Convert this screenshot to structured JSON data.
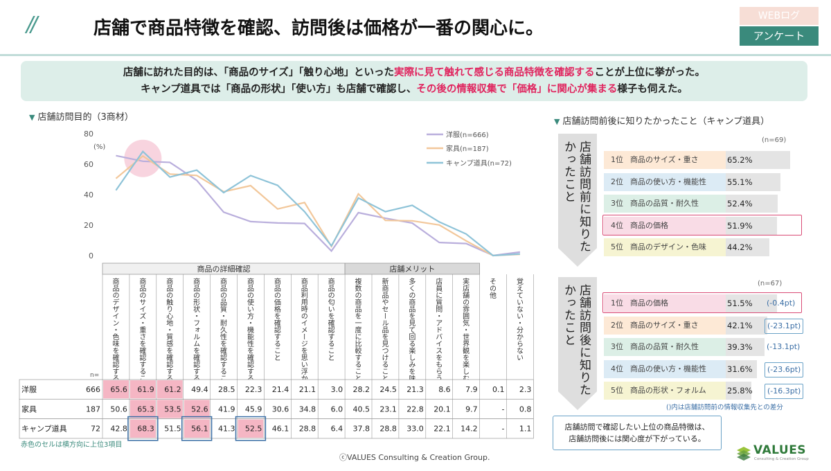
{
  "header": {
    "slashes": "//",
    "title": "店舗で商品特徴を確認、訪問後は価格が一番の関心に。",
    "tag_top": "WEBログ",
    "tag_bottom": "アンケート"
  },
  "summary": {
    "line1_a": "店舗に訪れた目的は、「商品のサイズ」「触り心地」といった",
    "line1_hl": "実際に見て触れて感じる商品特徴を確認する",
    "line1_b": "ことが上位に挙がった。",
    "line2_a": "キャンプ道具では「商品の形状」「使い方」も店舗で確認し、",
    "line2_hl": "その後の情報収集で「価格」に関心が集まる",
    "line2_b": "様子も伺えた。"
  },
  "left_section_title": "店舗訪問目的（3商材）",
  "right_section_title": "店舗訪問前後に知りたかったこと（キャンプ道具）",
  "chart_data": [
    {
      "type": "line",
      "ylim": [
        0,
        80
      ],
      "yticks": [
        "0",
        "20",
        "40",
        "60",
        "80"
      ],
      "ylabel": "(%)",
      "groups": [
        "商品の詳細確認",
        "店舗メリット"
      ],
      "categories": [
        "商品のデザイン・色味を確認すること",
        "商品のサイズ・重さを確認すること",
        "商品の触り心地・質感を確認すること",
        "商品の形状・フォルムを確認すること",
        "商品の品質・耐久性を確認すること",
        "商品の使い方・機能性を確認すること",
        "商品の価格を確認すること",
        "商品利用時のイメージを思い浮かべること",
        "商品の匂いを確認すること",
        "複数の商品を一度に比較すること",
        "新商品やセール品を見つけること",
        "多くの商品を見て回る楽しみを味わうこと",
        "店員に質問・アドバイスをもらうこと",
        "実店舗の雰囲気・世界観を楽しむこと",
        "その他",
        "覚えていない・分からない"
      ],
      "n_label": "n=",
      "series": [
        {
          "name": "洋服(n=666)",
          "table_name": "洋服",
          "n": "666",
          "color": "#b9aedc",
          "values": [
            65.6,
            61.9,
            61.2,
            49.4,
            28.5,
            22.3,
            21.4,
            21.1,
            3.0,
            28.2,
            24.5,
            21.3,
            8.6,
            7.9,
            0.1,
            2.3
          ],
          "table": [
            "65.6",
            "61.9",
            "61.2",
            "49.4",
            "28.5",
            "22.3",
            "21.4",
            "21.1",
            "3.0",
            "28.2",
            "24.5",
            "21.3",
            "8.6",
            "7.9",
            "0.1",
            "2.3"
          ]
        },
        {
          "name": "家具(n=187)",
          "table_name": "家具",
          "n": "187",
          "color": "#f2c79a",
          "values": [
            50.6,
            65.3,
            53.5,
            52.6,
            41.9,
            45.9,
            30.6,
            34.8,
            6.0,
            40.5,
            23.1,
            22.8,
            20.1,
            9.7,
            0,
            0.8
          ],
          "table": [
            "50.6",
            "65.3",
            "53.5",
            "52.6",
            "41.9",
            "45.9",
            "30.6",
            "34.8",
            "6.0",
            "40.5",
            "23.1",
            "22.8",
            "20.1",
            "9.7",
            "-",
            "0.8"
          ]
        },
        {
          "name": "キャンプ道具(n=72)",
          "table_name": "キャンプ道具",
          "n": "72",
          "color": "#8ec3d8",
          "values": [
            42.8,
            68.3,
            51.5,
            56.1,
            41.3,
            52.5,
            46.1,
            28.8,
            6.4,
            37.8,
            28.8,
            33.0,
            22.1,
            14.2,
            0,
            1.1
          ],
          "table": [
            "42.8",
            "68.3",
            "51.5",
            "56.1",
            "41.3",
            "52.5",
            "46.1",
            "28.8",
            "6.4",
            "37.8",
            "28.8",
            "33.0",
            "22.1",
            "14.2",
            "-",
            "1.1"
          ]
        }
      ],
      "highlights": [
        [
          0,
          0
        ],
        [
          0,
          1
        ],
        [
          0,
          2
        ],
        [
          1,
          1
        ],
        [
          1,
          2
        ],
        [
          1,
          3
        ],
        [
          2,
          1
        ],
        [
          2,
          3
        ],
        [
          2,
          5
        ]
      ],
      "boxed": [
        [
          2,
          1
        ],
        [
          2,
          3
        ],
        [
          2,
          5
        ]
      ],
      "footnote": "赤色のセルは横方向に上位3項目"
    },
    {
      "type": "bar",
      "title": "店舗訪問前に知りたかったこと",
      "n_label": "(n=69)",
      "ranks": [
        "1位",
        "2位",
        "3位",
        "4位",
        "5位"
      ],
      "categories": [
        "商品のサイズ・重さ",
        "商品の使い方・機能性",
        "商品の品質・耐久性",
        "商品の価格",
        "商品のデザイン・色味"
      ],
      "values": [
        65.2,
        55.1,
        52.4,
        51.9,
        44.2
      ],
      "labels": [
        "65.2%",
        "55.1%",
        "52.4%",
        "51.9%",
        "44.2%"
      ],
      "row_colors": [
        "#fde9d6",
        "#dcebf5",
        "#dcefe6",
        "#f9dce6",
        "#f6f4d2"
      ],
      "boxed_index": 3
    },
    {
      "type": "bar",
      "title": "店舗訪問後に知りたかったこと",
      "n_label": "(n=67)",
      "ranks": [
        "1位",
        "2位",
        "3位",
        "4位",
        "5位"
      ],
      "categories": [
        "商品の価格",
        "商品のサイズ・重さ",
        "商品の品質・耐久性",
        "商品の使い方・機能性",
        "商品の形状・フォルム"
      ],
      "values": [
        51.5,
        42.1,
        39.3,
        31.6,
        25.8
      ],
      "labels": [
        "51.5%",
        "42.1%",
        "39.3%",
        "31.6%",
        "25.8%"
      ],
      "diffs": [
        "(-0.4pt)",
        "(-23.1pt)",
        "(-13.1pt)",
        "(-23.6pt)",
        "(-16.3pt)"
      ],
      "row_colors": [
        "#f9dce6",
        "#fde9d6",
        "#dcefe6",
        "#dcebf5",
        "#f6f4d2"
      ],
      "boxed_index": 0,
      "diff_boxed": [
        1,
        3,
        4
      ],
      "note": "()内は店舗訪問前の情報収集先との差分"
    }
  ],
  "callout": {
    "line1": "店舗訪問で確認したい上位の商品特徴は、",
    "line2": "店舗訪問後には関心度が下がっている。"
  },
  "footer": {
    "copyright": "ⓒVALUES Consulting & Creation Group.",
    "logo_text": "VALUES",
    "logo_sub": "Consulting & Creation Group"
  }
}
